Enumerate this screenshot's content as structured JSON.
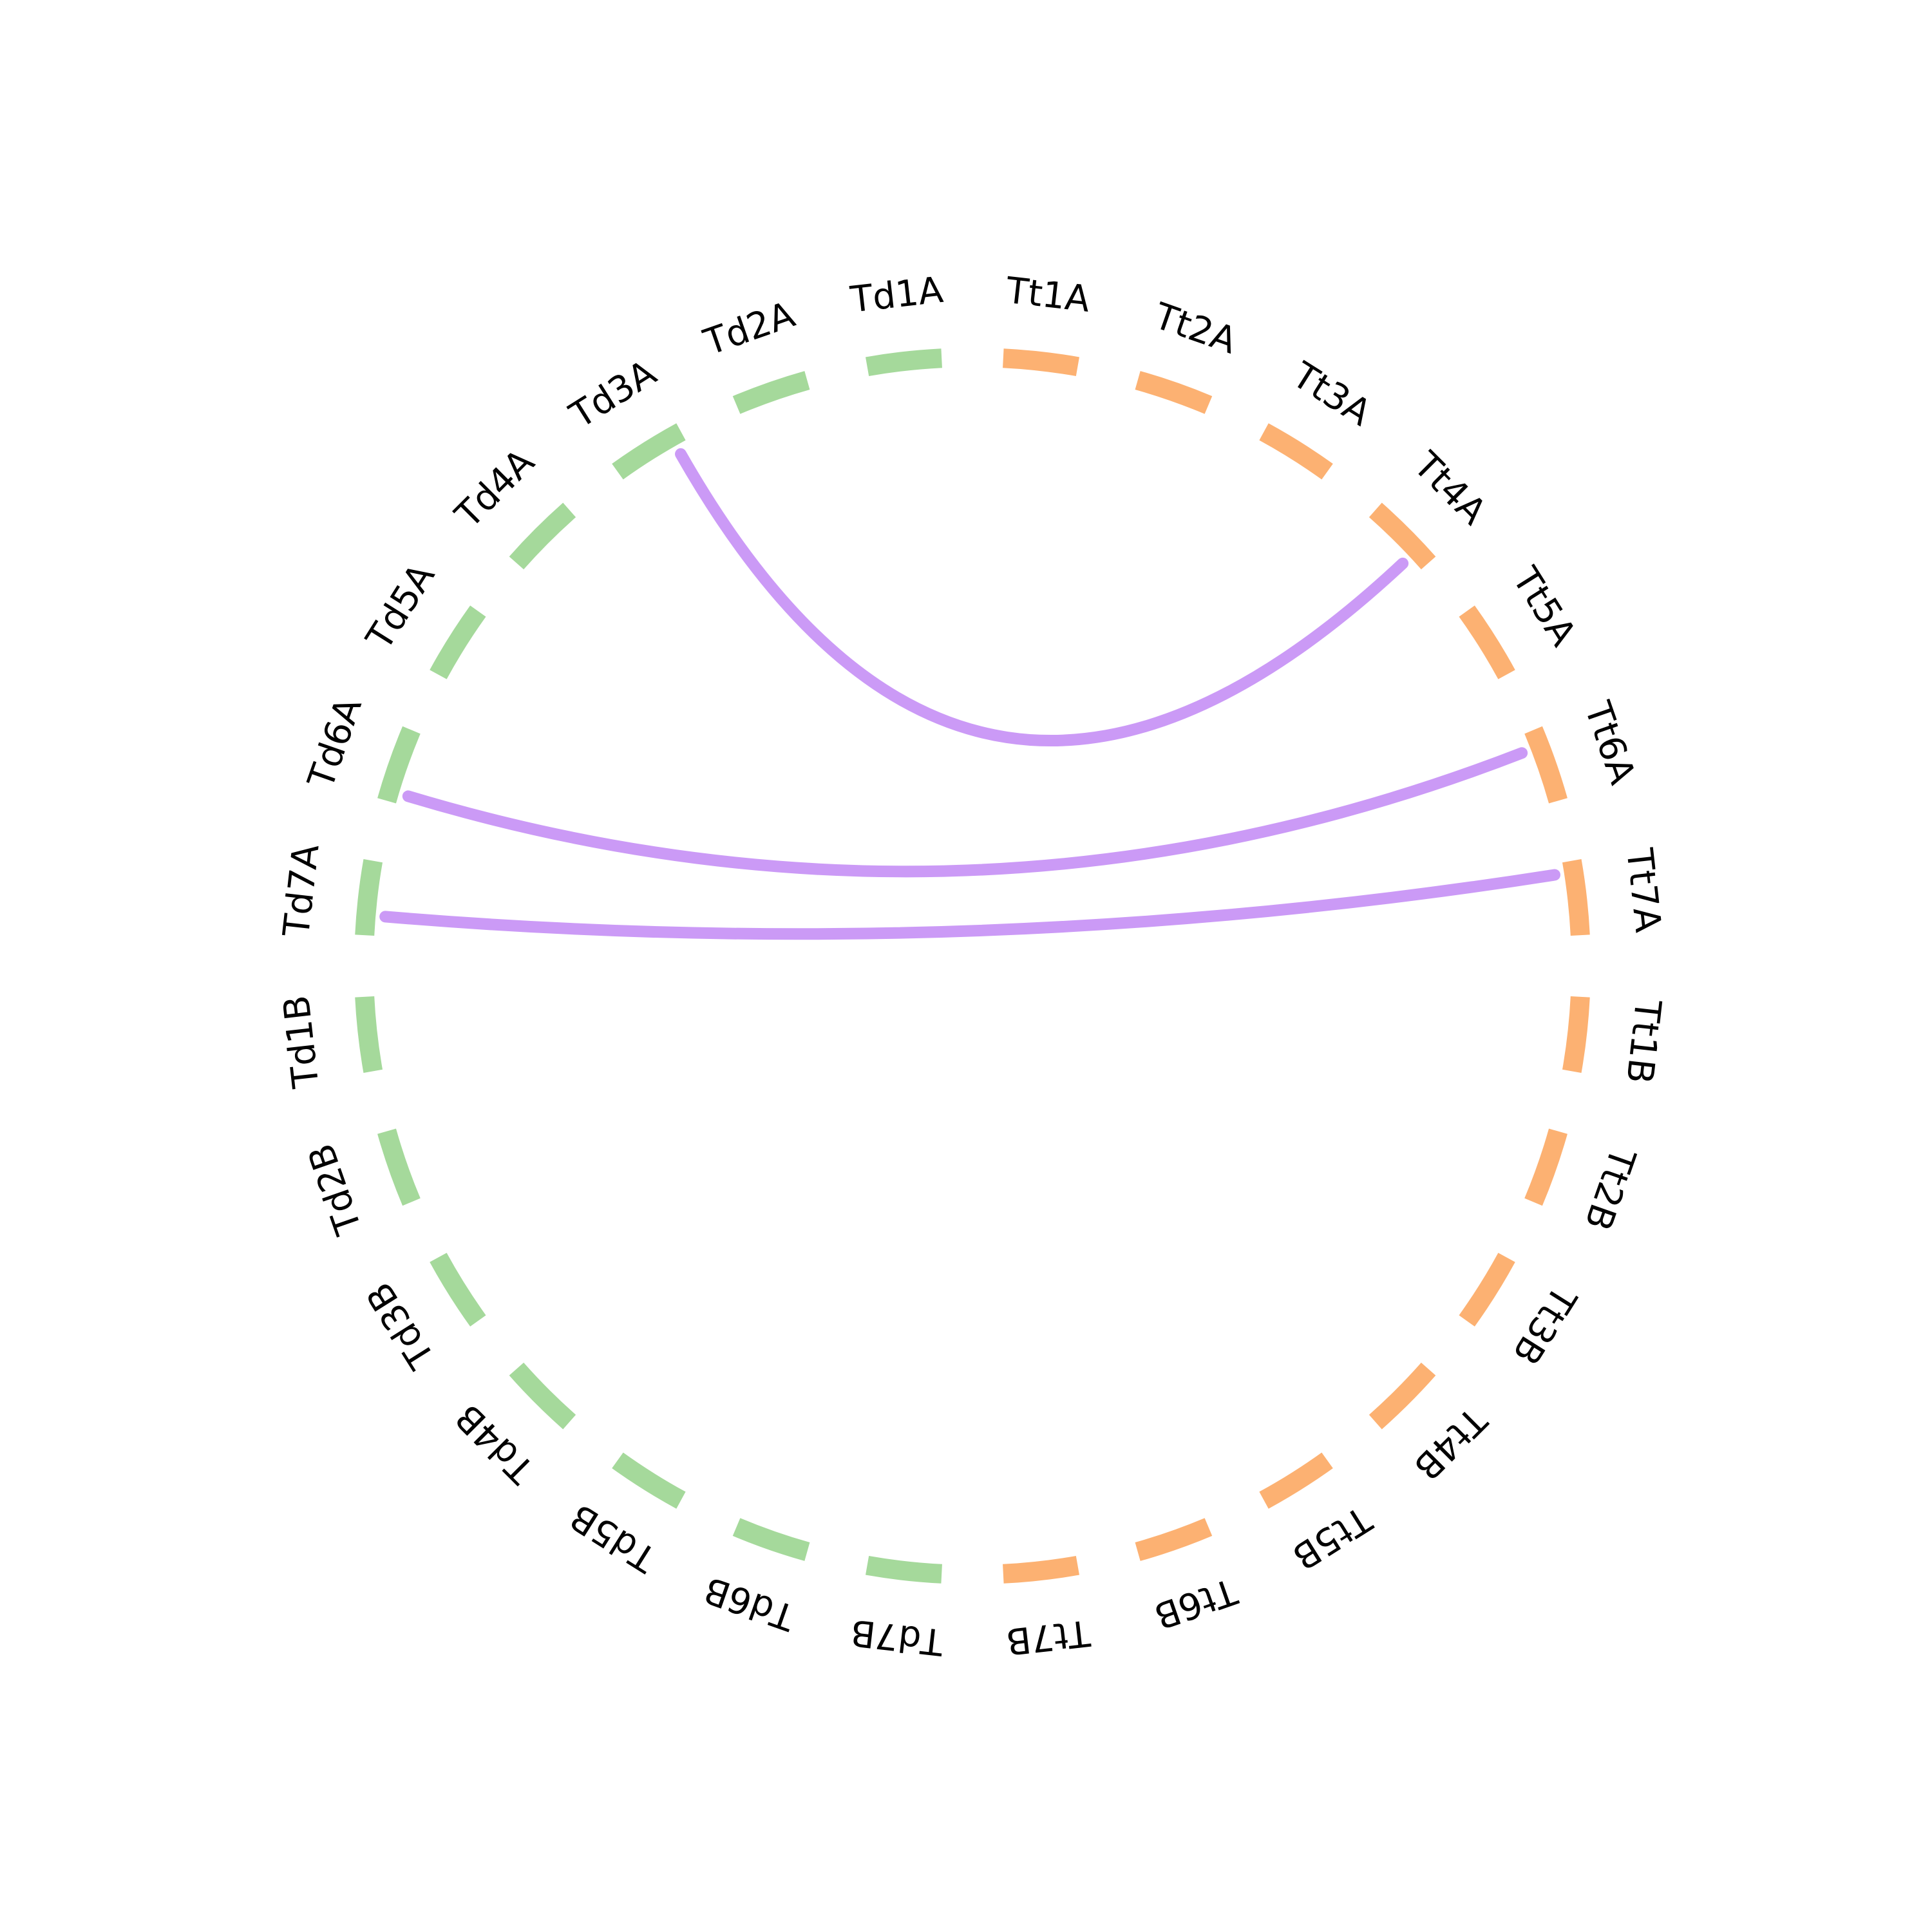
{
  "colors": {
    "group_a": "#a5d99b",
    "group_b": "#fcb172",
    "link": "#c895f6",
    "text": "#000000",
    "background": "#ffffff"
  },
  "segments": [
    {
      "label": "Tt1A",
      "group": "group_b"
    },
    {
      "label": "Tt2A",
      "group": "group_b"
    },
    {
      "label": "Tt3A",
      "group": "group_b"
    },
    {
      "label": "Tt4A",
      "group": "group_b"
    },
    {
      "label": "Tt5A",
      "group": "group_b"
    },
    {
      "label": "Tt6A",
      "group": "group_b"
    },
    {
      "label": "Tt7A",
      "group": "group_b"
    },
    {
      "label": "Tt1B",
      "group": "group_b"
    },
    {
      "label": "Tt2B",
      "group": "group_b"
    },
    {
      "label": "Tt3B",
      "group": "group_b"
    },
    {
      "label": "Tt4B",
      "group": "group_b"
    },
    {
      "label": "Tt5B",
      "group": "group_b"
    },
    {
      "label": "Tt6B",
      "group": "group_b"
    },
    {
      "label": "Tt7B",
      "group": "group_b"
    },
    {
      "label": "Td7B",
      "group": "group_a"
    },
    {
      "label": "Td6B",
      "group": "group_a"
    },
    {
      "label": "Td5B",
      "group": "group_a"
    },
    {
      "label": "Td4B",
      "group": "group_a"
    },
    {
      "label": "Td3B",
      "group": "group_a"
    },
    {
      "label": "Td2B",
      "group": "group_a"
    },
    {
      "label": "Td1B",
      "group": "group_a"
    },
    {
      "label": "Td7A",
      "group": "group_a"
    },
    {
      "label": "Td6A",
      "group": "group_a"
    },
    {
      "label": "Td5A",
      "group": "group_a"
    },
    {
      "label": "Td4A",
      "group": "group_a"
    },
    {
      "label": "Td3A",
      "group": "group_a"
    },
    {
      "label": "Td2A",
      "group": "group_a"
    },
    {
      "label": "Td1A",
      "group": "group_a"
    }
  ],
  "links": [
    {
      "source": "Td3A",
      "source_pos": 0.85,
      "target": "Tt4A",
      "target_pos": 0.77
    },
    {
      "source": "Td6A",
      "source_pos": 0.14,
      "target": "Tt6A",
      "target_pos": 0.23
    },
    {
      "source": "Td7A",
      "source_pos": 0.27,
      "target": "Tt7A",
      "target_pos": 0.15
    }
  ]
}
